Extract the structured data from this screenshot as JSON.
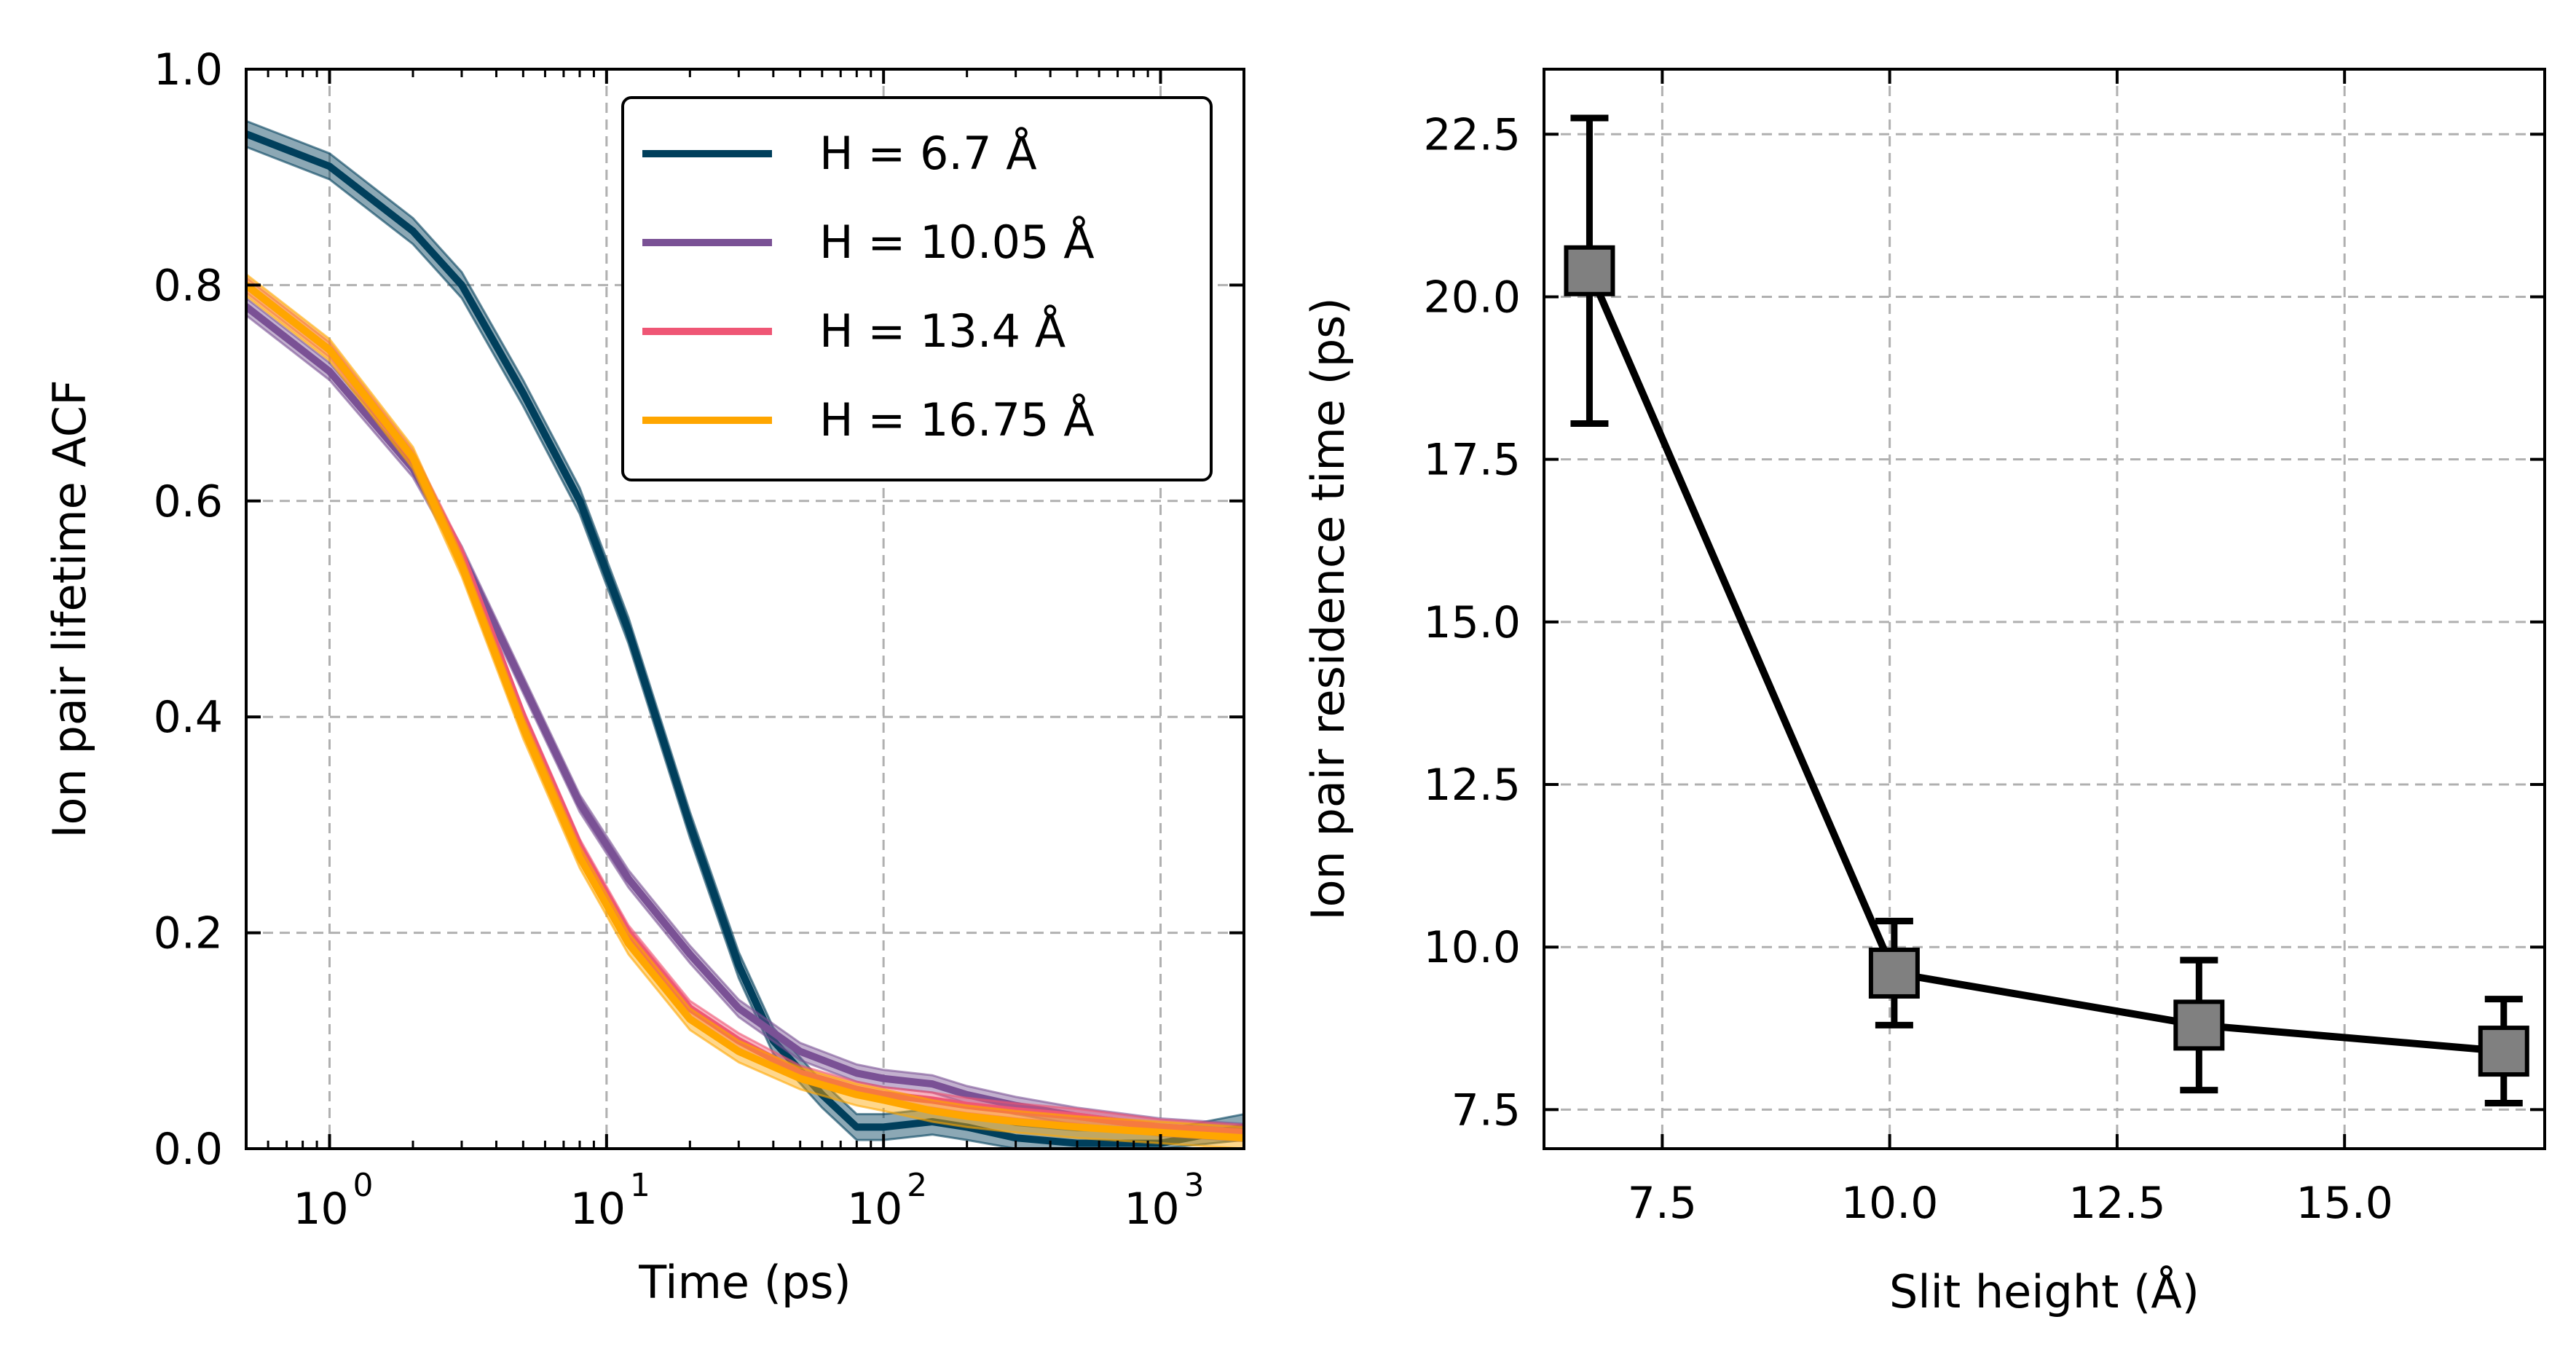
{
  "chart_data": [
    {
      "type": "line",
      "xlabel": "Time (ps)",
      "ylabel": "Ion pair lifetime ACF",
      "xscale": "log",
      "xlim": [
        0.5,
        2000
      ],
      "ylim": [
        0.0,
        1.0
      ],
      "xticks": [
        1,
        10,
        100,
        1000
      ],
      "xtick_labels": [
        {
          "base": "10",
          "exp": "0"
        },
        {
          "base": "10",
          "exp": "1"
        },
        {
          "base": "10",
          "exp": "2"
        },
        {
          "base": "10",
          "exp": "3"
        }
      ],
      "yticks": [
        "0.0",
        "0.2",
        "0.4",
        "0.6",
        "0.8",
        "1.0"
      ],
      "grid": true,
      "legend_position": "top-right",
      "series": [
        {
          "name": "H = 6.7 Å",
          "color": "#003f5c",
          "band": 0.012,
          "x": [
            0.5,
            1,
            2,
            3,
            5,
            8,
            12,
            20,
            30,
            40,
            60,
            80,
            100,
            150,
            200,
            300,
            500,
            1000,
            2000
          ],
          "y": [
            0.94,
            0.91,
            0.85,
            0.8,
            0.7,
            0.6,
            0.48,
            0.3,
            0.17,
            0.1,
            0.05,
            0.02,
            0.02,
            0.025,
            0.02,
            0.01,
            0.005,
            0.005,
            0.02
          ]
        },
        {
          "name": "H = 10.05 Å",
          "color": "#7a5195",
          "band": 0.008,
          "x": [
            0.5,
            1,
            2,
            3,
            5,
            8,
            12,
            20,
            30,
            50,
            80,
            100,
            150,
            200,
            300,
            500,
            1000,
            2000
          ],
          "y": [
            0.78,
            0.72,
            0.63,
            0.55,
            0.43,
            0.32,
            0.25,
            0.18,
            0.13,
            0.09,
            0.07,
            0.065,
            0.06,
            0.05,
            0.04,
            0.03,
            0.02,
            0.015
          ]
        },
        {
          "name": "H = 13.4 Å",
          "color": "#ef5675",
          "band": 0.007,
          "x": [
            0.5,
            1,
            2,
            3,
            5,
            8,
            12,
            20,
            30,
            50,
            80,
            100,
            150,
            200,
            300,
            500,
            1000,
            2000
          ],
          "y": [
            0.8,
            0.74,
            0.64,
            0.55,
            0.4,
            0.28,
            0.2,
            0.13,
            0.1,
            0.07,
            0.055,
            0.05,
            0.045,
            0.04,
            0.035,
            0.03,
            0.02,
            0.015
          ]
        },
        {
          "name": "H = 16.75 Å",
          "color": "#ffa600",
          "band": 0.01,
          "x": [
            0.5,
            1,
            2,
            3,
            5,
            8,
            12,
            20,
            30,
            50,
            80,
            100,
            150,
            200,
            300,
            500,
            1000,
            2000
          ],
          "y": [
            0.8,
            0.74,
            0.64,
            0.54,
            0.39,
            0.27,
            0.19,
            0.12,
            0.09,
            0.065,
            0.05,
            0.045,
            0.035,
            0.03,
            0.025,
            0.02,
            0.015,
            0.01
          ]
        }
      ]
    },
    {
      "type": "line",
      "xlabel": "Slit height (Å)",
      "ylabel": "Ion pair residence time (ps)",
      "xlim": [
        6.2,
        17.2
      ],
      "ylim": [
        6.9,
        23.5
      ],
      "xticks": [
        "7.5",
        "10.0",
        "12.5",
        "15.0"
      ],
      "yticks": [
        "7.5",
        "10.0",
        "12.5",
        "15.0",
        "17.5",
        "20.0",
        "22.5"
      ],
      "grid": true,
      "marker": "square",
      "marker_color": "#808080",
      "line_color": "#000000",
      "x": [
        6.7,
        10.05,
        13.4,
        16.75
      ],
      "y": [
        20.4,
        9.6,
        8.8,
        8.4
      ],
      "yerr": [
        2.35,
        0.8,
        1.0,
        0.8
      ]
    }
  ]
}
